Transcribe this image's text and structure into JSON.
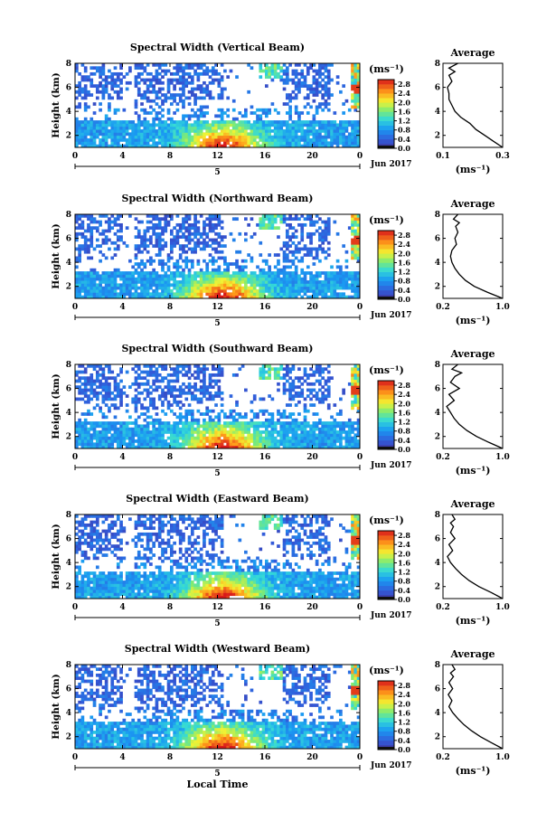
{
  "chart_data": [
    {
      "type": "heatmap",
      "title": "Spectral Width (Vertical Beam)",
      "ylabel": "Height (km)",
      "x_ticks": [
        "0",
        "4",
        "8",
        "12",
        "16",
        "20",
        "0"
      ],
      "y_ticks": [
        "2",
        "4",
        "6",
        "8"
      ],
      "xlim": [
        0,
        24
      ],
      "ylim": [
        1,
        8
      ],
      "date_marker": "5",
      "date_label": "Jun 2017",
      "colorbar": {
        "unit": "(ms⁻¹)",
        "ticks": [
          "0.0",
          "0.4",
          "0.8",
          "1.2",
          "1.6",
          "2.0",
          "2.4",
          "2.8"
        ],
        "range": [
          0,
          3.0
        ]
      },
      "average": {
        "title": "Average",
        "xlabel": "(ms⁻¹)",
        "x_ticks": [
          "0.1",
          "0.3"
        ],
        "xlim": [
          0.1,
          0.3
        ],
        "ylim": [
          1,
          8
        ],
        "y_ticks": [
          "2",
          "4",
          "6",
          "8"
        ],
        "x": [
          0.3,
          0.27,
          0.24,
          0.21,
          0.19,
          0.16,
          0.14,
          0.13,
          0.12,
          0.12,
          0.115,
          0.13,
          0.12,
          0.14,
          0.12,
          0.15
        ],
        "y": [
          1.0,
          1.5,
          2.0,
          2.5,
          3.0,
          3.5,
          4.0,
          4.5,
          5.0,
          5.5,
          6.0,
          6.5,
          7.0,
          7.3,
          7.6,
          8.0
        ]
      }
    },
    {
      "type": "heatmap",
      "title": "Spectral Width (Northward Beam)",
      "ylabel": "Height (km)",
      "x_ticks": [
        "0",
        "4",
        "8",
        "12",
        "16",
        "20",
        "0"
      ],
      "y_ticks": [
        "2",
        "4",
        "6",
        "8"
      ],
      "xlim": [
        0,
        24
      ],
      "ylim": [
        1,
        8
      ],
      "date_marker": "5",
      "date_label": "Jun 2017",
      "colorbar": {
        "unit": "(ms⁻¹)",
        "ticks": [
          "0.0",
          "0.4",
          "0.8",
          "1.2",
          "1.6",
          "2.0",
          "2.4",
          "2.8"
        ],
        "range": [
          0,
          3.0
        ]
      },
      "average": {
        "title": "Average",
        "xlabel": "(ms⁻¹)",
        "x_ticks": [
          "0.2",
          "1.0"
        ],
        "xlim": [
          0.2,
          1.0
        ],
        "ylim": [
          1,
          8
        ],
        "y_ticks": [
          "2",
          "4",
          "6",
          "8"
        ],
        "x": [
          1.0,
          0.8,
          0.62,
          0.5,
          0.42,
          0.36,
          0.32,
          0.3,
          0.32,
          0.38,
          0.36,
          0.4,
          0.37,
          0.42,
          0.34,
          0.4
        ],
        "y": [
          1.0,
          1.5,
          2.0,
          2.5,
          3.0,
          3.5,
          4.0,
          4.5,
          5.0,
          5.5,
          6.0,
          6.5,
          7.0,
          7.3,
          7.6,
          8.0
        ]
      }
    },
    {
      "type": "heatmap",
      "title": "Spectral Width (Southward Beam)",
      "ylabel": "Height (km)",
      "x_ticks": [
        "0",
        "4",
        "8",
        "12",
        "16",
        "20",
        "0"
      ],
      "y_ticks": [
        "2",
        "4",
        "6",
        "8"
      ],
      "xlim": [
        0,
        24
      ],
      "ylim": [
        1,
        8
      ],
      "date_marker": "5",
      "date_label": "Jun 2017",
      "colorbar": {
        "unit": "(ms⁻¹)",
        "ticks": [
          "0.0",
          "0.4",
          "0.8",
          "1.2",
          "1.6",
          "2.0",
          "2.4",
          "2.8"
        ],
        "range": [
          0,
          3.0
        ]
      },
      "average": {
        "title": "Average",
        "xlabel": "(ms⁻¹)",
        "x_ticks": [
          "0.2",
          "1.0"
        ],
        "xlim": [
          0.2,
          1.0
        ],
        "ylim": [
          1,
          8
        ],
        "y_ticks": [
          "2",
          "4",
          "6",
          "8"
        ],
        "x": [
          1.0,
          0.82,
          0.65,
          0.52,
          0.42,
          0.35,
          0.3,
          0.25,
          0.35,
          0.28,
          0.42,
          0.3,
          0.36,
          0.45,
          0.32,
          0.4
        ],
        "y": [
          1.0,
          1.5,
          2.0,
          2.5,
          3.0,
          3.5,
          4.0,
          4.5,
          5.0,
          5.5,
          6.0,
          6.5,
          7.0,
          7.3,
          7.6,
          8.0
        ]
      }
    },
    {
      "type": "heatmap",
      "title": "Spectral Width (Eastward Beam)",
      "ylabel": "Height (km)",
      "x_ticks": [
        "0",
        "4",
        "8",
        "12",
        "16",
        "20",
        "0"
      ],
      "y_ticks": [
        "2",
        "4",
        "6",
        "8"
      ],
      "xlim": [
        0,
        24
      ],
      "ylim": [
        1,
        8
      ],
      "date_marker": "5",
      "date_label": "Jun 2017",
      "colorbar": {
        "unit": "(ms⁻¹)",
        "ticks": [
          "0.0",
          "0.4",
          "0.8",
          "1.2",
          "1.6",
          "2.0",
          "2.4",
          "2.8"
        ],
        "range": [
          0,
          3.0
        ]
      },
      "average": {
        "title": "Average",
        "xlabel": "(ms⁻¹)",
        "x_ticks": [
          "0.2",
          "1.0"
        ],
        "xlim": [
          0.2,
          1.0
        ],
        "ylim": [
          1,
          8
        ],
        "y_ticks": [
          "2",
          "4",
          "6",
          "8"
        ],
        "x": [
          1.0,
          0.85,
          0.68,
          0.55,
          0.45,
          0.37,
          0.3,
          0.26,
          0.33,
          0.28,
          0.36,
          0.3,
          0.34,
          0.3,
          0.36,
          0.32
        ],
        "y": [
          1.0,
          1.5,
          2.0,
          2.5,
          3.0,
          3.5,
          4.0,
          4.5,
          5.0,
          5.5,
          6.0,
          6.5,
          7.0,
          7.3,
          7.6,
          8.0
        ]
      }
    },
    {
      "type": "heatmap",
      "title": "Spectral Width (Westward Beam)",
      "ylabel": "Height (km)",
      "xlabel": "Local Time",
      "x_ticks": [
        "0",
        "4",
        "8",
        "12",
        "16",
        "20",
        "0"
      ],
      "y_ticks": [
        "2",
        "4",
        "6",
        "8"
      ],
      "xlim": [
        0,
        24
      ],
      "ylim": [
        1,
        8
      ],
      "date_marker": "5",
      "date_label": "Jun 2017",
      "colorbar": {
        "unit": "(ms⁻¹)",
        "ticks": [
          "0.0",
          "0.4",
          "0.8",
          "1.2",
          "1.6",
          "2.0",
          "2.4",
          "2.8"
        ],
        "range": [
          0,
          3.0
        ]
      },
      "average": {
        "title": "Average",
        "xlabel": "(ms⁻¹)",
        "x_ticks": [
          "0.2",
          "1.0"
        ],
        "xlim": [
          0.2,
          1.0
        ],
        "ylim": [
          1,
          8
        ],
        "y_ticks": [
          "2",
          "4",
          "6",
          "8"
        ],
        "x": [
          1.0,
          0.85,
          0.7,
          0.58,
          0.48,
          0.4,
          0.33,
          0.28,
          0.32,
          0.27,
          0.33,
          0.28,
          0.34,
          0.3,
          0.36,
          0.32
        ],
        "y": [
          1.0,
          1.5,
          2.0,
          2.5,
          3.0,
          3.5,
          4.0,
          4.5,
          5.0,
          5.5,
          6.0,
          6.5,
          7.0,
          7.3,
          7.6,
          8.0
        ]
      }
    }
  ]
}
